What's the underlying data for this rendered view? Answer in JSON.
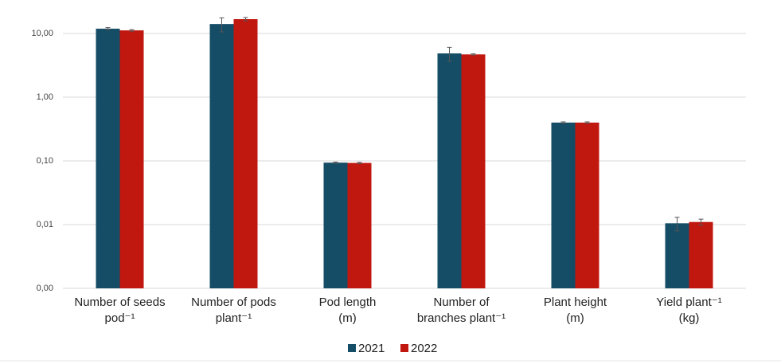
{
  "chart_data": {
    "type": "bar",
    "categories": [
      [
        "Number of seeds",
        "pod⁻¹"
      ],
      [
        "Number of pods",
        "plant⁻¹"
      ],
      [
        "Pod length",
        "(m)"
      ],
      [
        "Number of",
        "branches plant⁻¹"
      ],
      [
        "Plant height",
        "(m)"
      ],
      [
        "Yield plant⁻¹",
        "(kg)"
      ]
    ],
    "series": [
      {
        "name": "2021",
        "color": "#154c66",
        "values": [
          11.9,
          14.1,
          0.094,
          4.87,
          0.4,
          0.0105
        ],
        "errors": [
          0.5,
          3.5,
          0.002,
          1.2,
          0.01,
          0.0025
        ]
      },
      {
        "name": "2022",
        "color": "#c0170f",
        "values": [
          11.2,
          16.8,
          0.093,
          4.7,
          0.4,
          0.011
        ],
        "errors": [
          0.3,
          1.0,
          0.002,
          0.1,
          0.01,
          0.0012
        ]
      }
    ],
    "log_scale": true,
    "ylim": [
      0.001,
      20
    ],
    "yticks": [
      {
        "value": 0.001,
        "label": "0,00"
      },
      {
        "value": 0.01,
        "label": "0,01"
      },
      {
        "value": 0.1,
        "label": "0,10"
      },
      {
        "value": 1,
        "label": "1,00"
      },
      {
        "value": 10,
        "label": "10,00"
      }
    ],
    "grid": true,
    "legend": "bottom"
  }
}
